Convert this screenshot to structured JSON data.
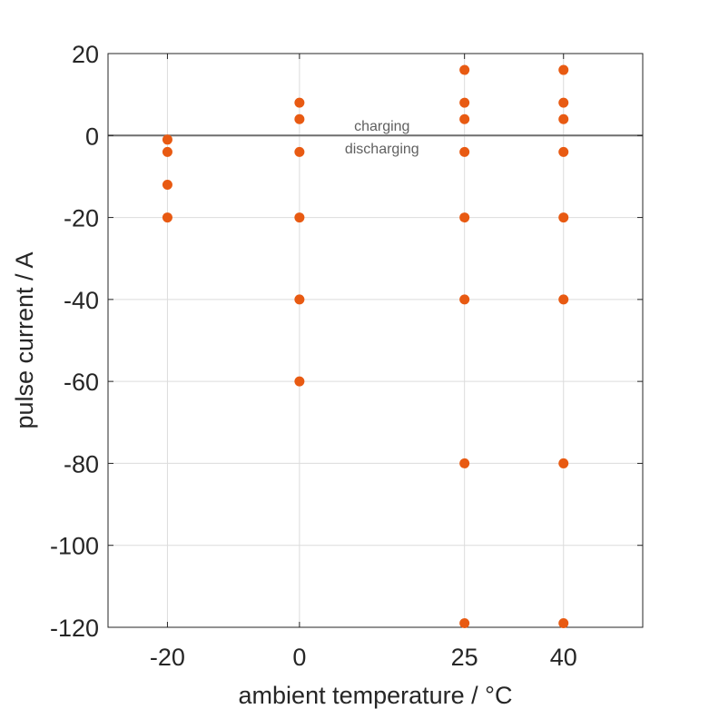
{
  "chart_data": {
    "type": "scatter",
    "title": "",
    "xlabel": "ambient temperature / °C",
    "ylabel": "pulse current / A",
    "xlim": [
      -29,
      52
    ],
    "ylim": [
      -120,
      20
    ],
    "xticks": [
      -20,
      0,
      25,
      40
    ],
    "yticks": [
      20,
      0,
      -20,
      -40,
      -60,
      -80,
      -100,
      -120
    ],
    "xtick_labels": [
      "-20",
      "0",
      "25",
      "40"
    ],
    "ytick_labels": [
      "20",
      "0",
      "-20",
      "-40",
      "-60",
      "-80",
      "-100",
      "-120"
    ],
    "grid": true,
    "reference_line": {
      "y": 0,
      "color": "#6e6e6e"
    },
    "annotations": [
      {
        "text": "charging",
        "x": 12.5,
        "y": 2.5
      },
      {
        "text": "discharging",
        "x": 12.5,
        "y": -3
      }
    ],
    "marker_color": "#e85a12",
    "series": [
      {
        "points": [
          [
            -20,
            -1
          ],
          [
            -20,
            -4
          ],
          [
            -20,
            -12
          ],
          [
            -20,
            -20
          ],
          [
            0,
            8
          ],
          [
            0,
            4
          ],
          [
            0,
            -4
          ],
          [
            0,
            -20
          ],
          [
            0,
            -40
          ],
          [
            0,
            -60
          ],
          [
            25,
            16
          ],
          [
            25,
            8
          ],
          [
            25,
            4
          ],
          [
            25,
            -4
          ],
          [
            25,
            -20
          ],
          [
            25,
            -40
          ],
          [
            25,
            -80
          ],
          [
            25,
            -119
          ],
          [
            40,
            16
          ],
          [
            40,
            8
          ],
          [
            40,
            4
          ],
          [
            40,
            -4
          ],
          [
            40,
            -20
          ],
          [
            40,
            -40
          ],
          [
            40,
            -80
          ],
          [
            40,
            -119
          ]
        ]
      }
    ]
  }
}
